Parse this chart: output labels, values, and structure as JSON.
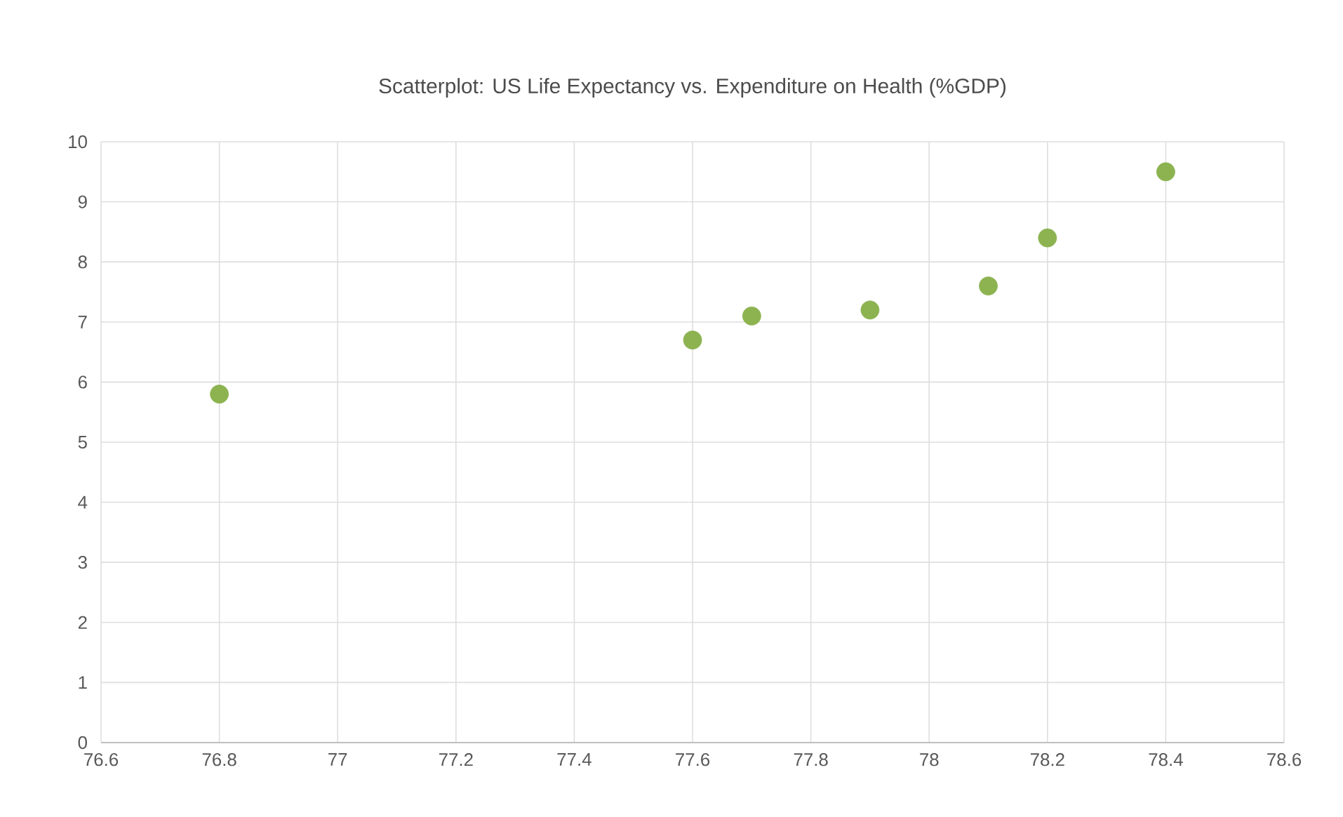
{
  "chart_data": {
    "type": "scatter",
    "title": "Scatterplot: US Life Expectancy vs. Expenditure on Health (%GDP)",
    "x": [
      76.8,
      77.6,
      77.7,
      77.9,
      78.1,
      78.2,
      78.4
    ],
    "values": [
      5.8,
      6.7,
      7.1,
      7.2,
      7.6,
      8.4,
      9.5
    ],
    "color": "#8cb350",
    "xlim": [
      76.6,
      78.6
    ],
    "xticks": [
      76.6,
      76.8,
      77,
      77.2,
      77.4,
      77.6,
      77.8,
      78,
      78.2,
      78.4,
      78.6
    ],
    "ylim": [
      0,
      10
    ],
    "yticks": [
      0,
      1,
      2,
      3,
      4,
      5,
      6,
      7,
      8,
      9,
      10
    ],
    "grid": true
  }
}
